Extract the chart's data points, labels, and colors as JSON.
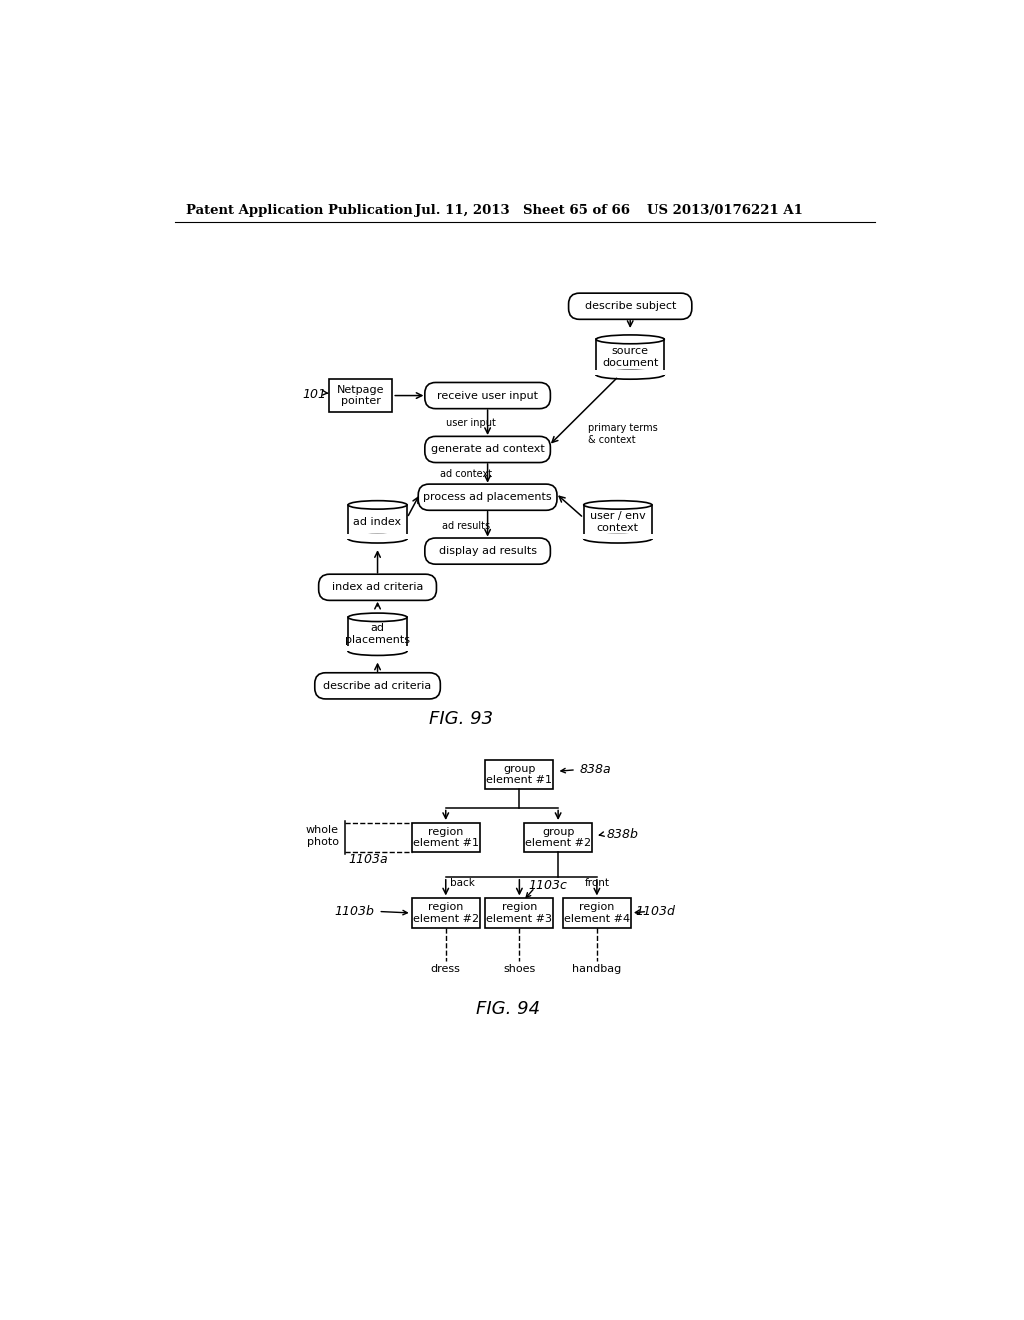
{
  "bg_color": "#ffffff",
  "header_text": "Patent Application Publication",
  "header_date": "Jul. 11, 2013",
  "header_sheet": "Sheet 65 of 66",
  "header_patent": "US 2013/0176221 A1",
  "fig93_label": "FIG. 93",
  "fig94_label": "FIG. 94"
}
